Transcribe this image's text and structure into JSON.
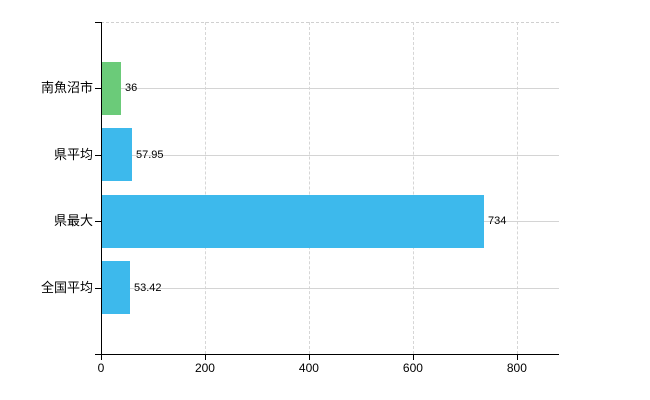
{
  "chart_data": {
    "type": "bar",
    "orientation": "horizontal",
    "title": "",
    "xlabel": "",
    "ylabel": "",
    "categories": [
      "南魚沼市",
      "県平均",
      "県最大",
      "全国平均"
    ],
    "values": [
      36,
      57.95,
      734,
      53.42
    ],
    "value_labels": [
      "36",
      "57.95",
      "734",
      "53.42"
    ],
    "bar_colors": [
      "#6bcb79",
      "#3db9ec",
      "#3db9ec",
      "#3db9ec"
    ],
    "xticks": [
      0,
      200,
      400,
      600,
      800
    ],
    "xtick_labels": [
      "0",
      "200",
      "400",
      "600",
      "800"
    ],
    "xlim": [
      0,
      881
    ],
    "grid": true,
    "legend": "none"
  },
  "colors": {
    "background": "#ffffff",
    "axis": "#000000",
    "gridline": "#d6d6d6",
    "text": "#000000",
    "green_bar": "#6bcb79",
    "blue_bar": "#3db9ec"
  }
}
